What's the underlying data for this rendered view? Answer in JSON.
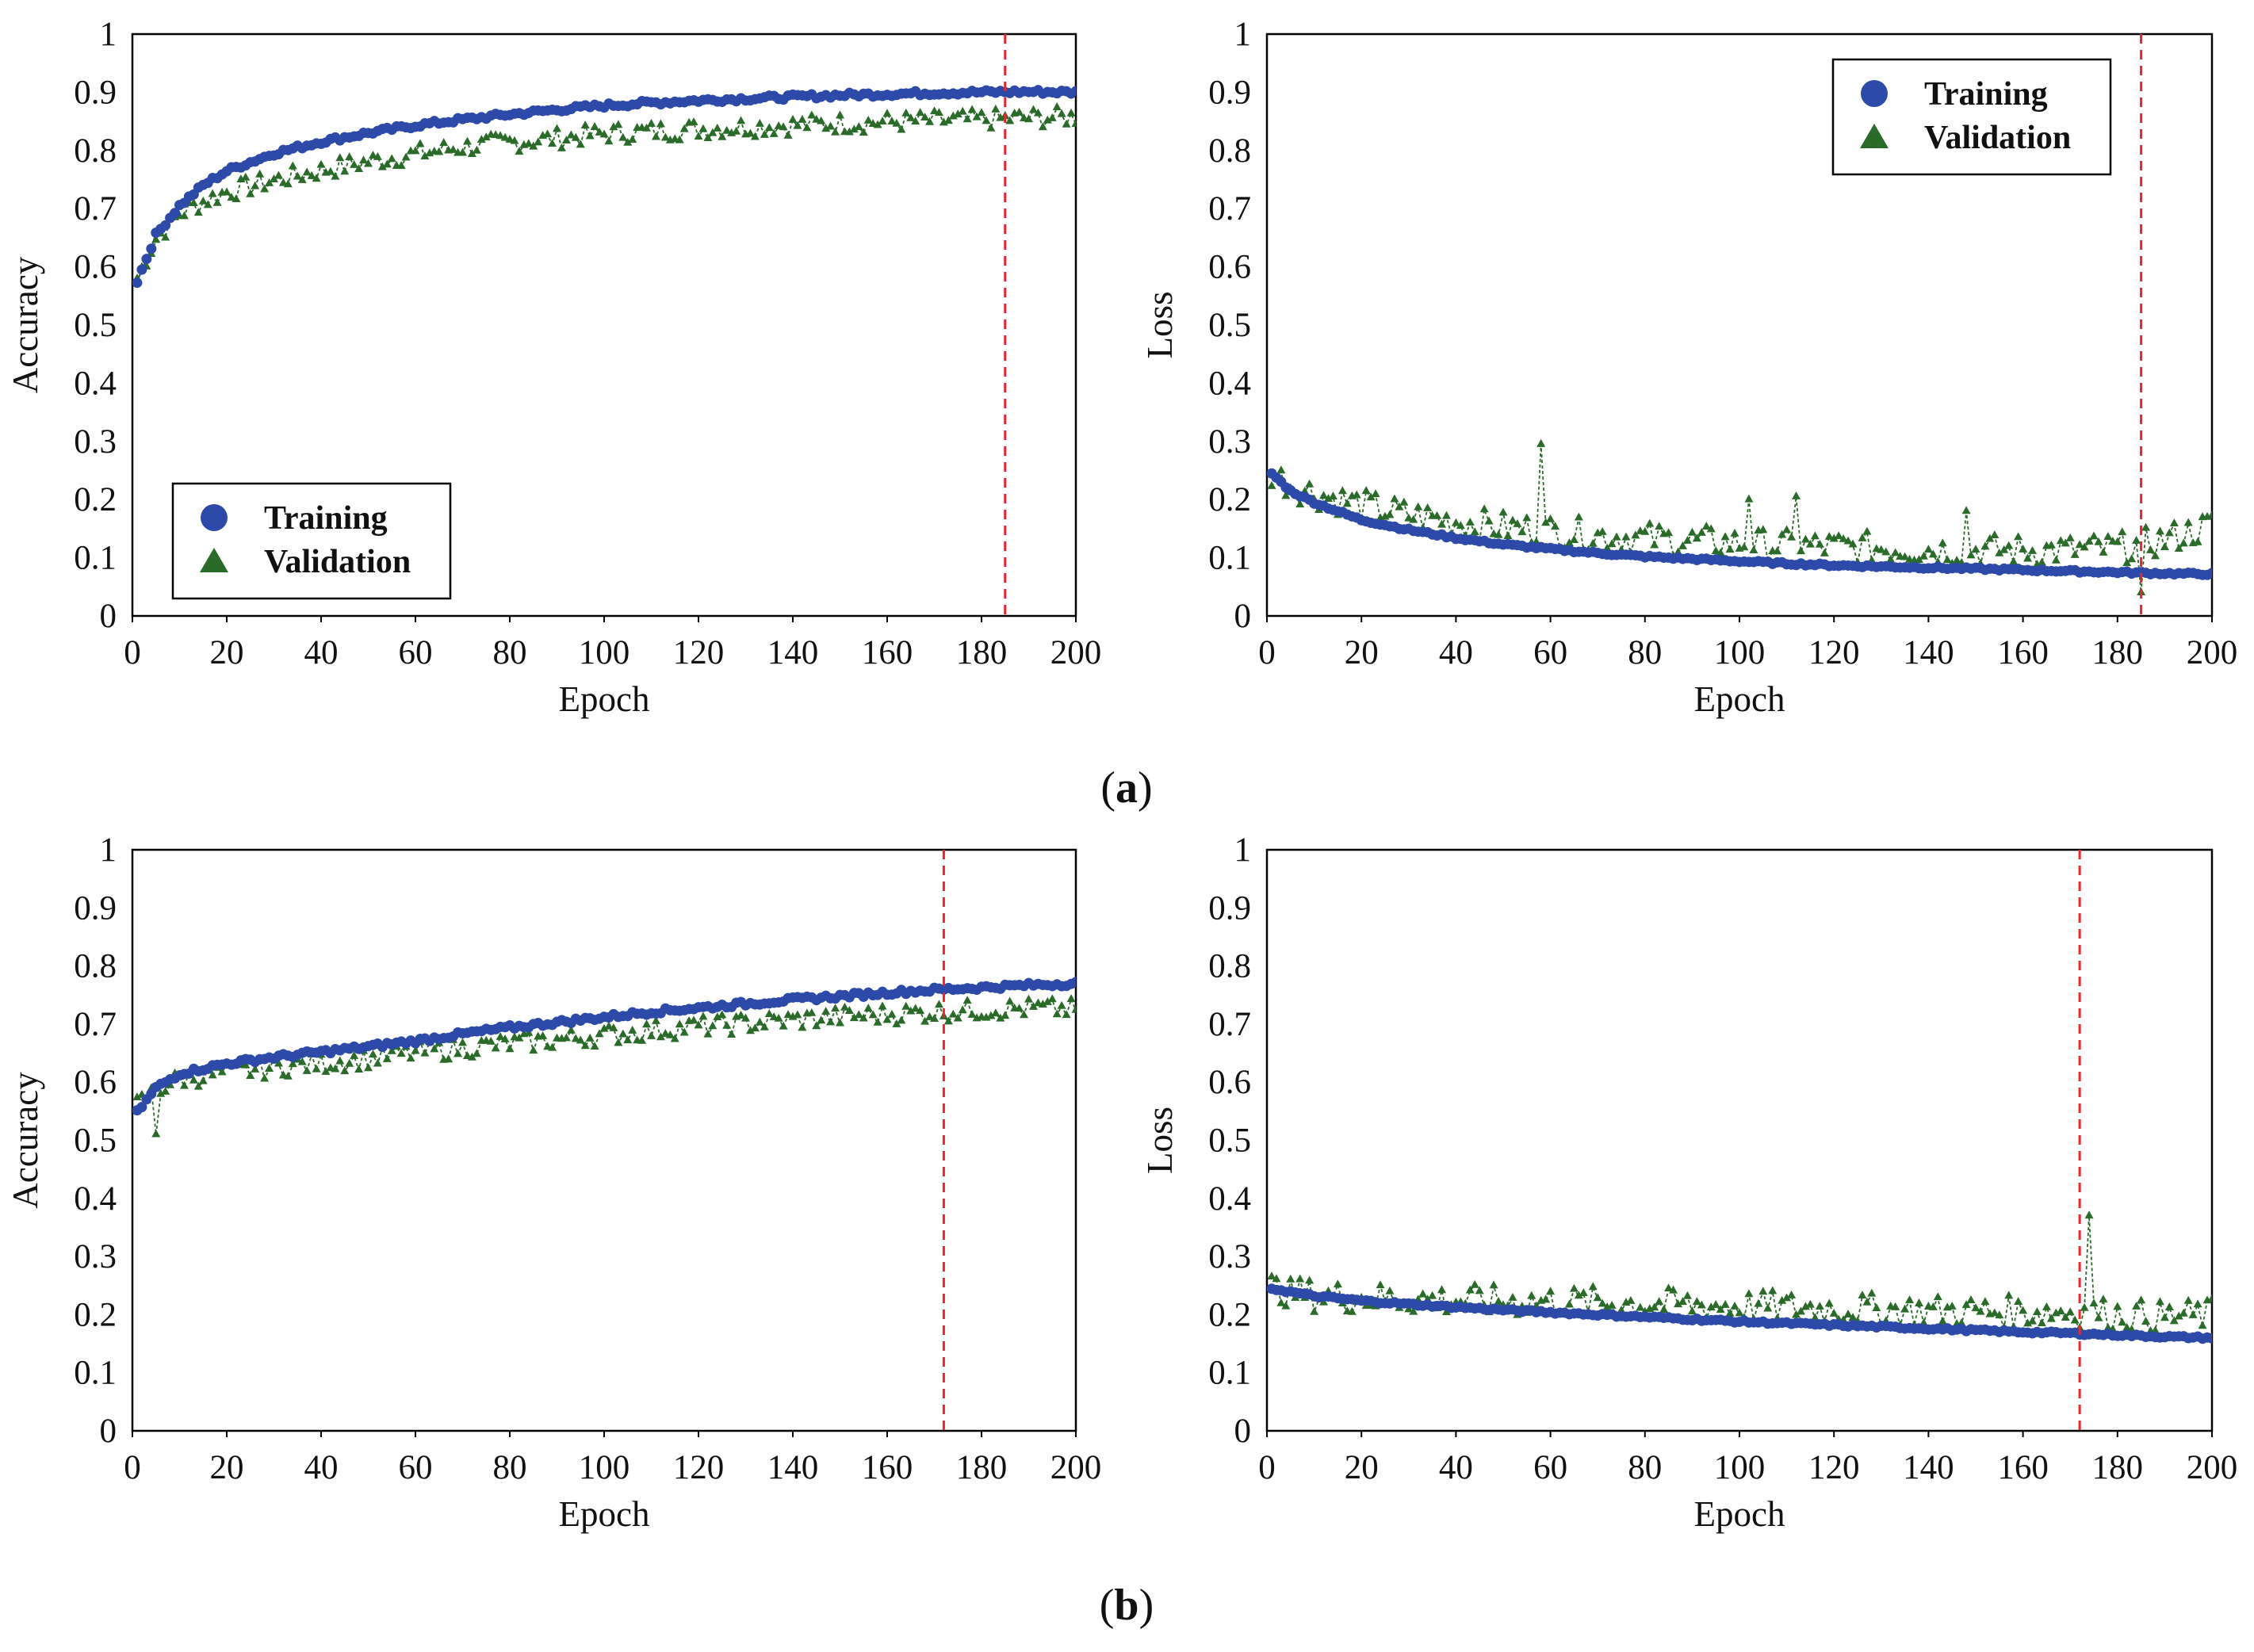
{
  "figure": {
    "panel_labels": [
      {
        "open": "(",
        "letter": "a",
        "close": ")"
      },
      {
        "open": "(",
        "letter": "b",
        "close": ")"
      }
    ]
  },
  "colors": {
    "training": "#2e4aa8",
    "validation": "#2a6b2a",
    "marker_line": "#e8262b",
    "axis": "#000000"
  },
  "chart_data": [
    {
      "id": "a-accuracy",
      "type": "scatter",
      "title": "",
      "xlabel": "Epoch",
      "ylabel": "Accuracy",
      "xlim": [
        0,
        200
      ],
      "ylim": [
        0,
        1
      ],
      "xticks": [
        "0",
        "20",
        "40",
        "60",
        "80",
        "100",
        "120",
        "140",
        "160",
        "180",
        "200"
      ],
      "yticks": [
        "0",
        "0.1",
        "0.2",
        "0.3",
        "0.4",
        "0.5",
        "0.6",
        "0.7",
        "0.8",
        "0.9",
        "1"
      ],
      "vline_epoch": 185,
      "legend": {
        "position": "bottom-left",
        "entries": [
          "Training",
          "Validation"
        ]
      },
      "series": [
        {
          "name": "Training",
          "marker": "circle",
          "x": [
            1,
            5,
            10,
            15,
            20,
            30,
            40,
            50,
            60,
            70,
            80,
            90,
            100,
            110,
            120,
            130,
            140,
            150,
            160,
            170,
            180,
            190,
            200
          ],
          "values": [
            0.575,
            0.655,
            0.705,
            0.74,
            0.765,
            0.795,
            0.815,
            0.83,
            0.843,
            0.853,
            0.862,
            0.87,
            0.877,
            0.882,
            0.886,
            0.889,
            0.892,
            0.895,
            0.897,
            0.899,
            0.9,
            0.901,
            0.9
          ]
        },
        {
          "name": "Validation",
          "marker": "triangle",
          "x": [
            1,
            5,
            10,
            15,
            20,
            30,
            40,
            50,
            60,
            70,
            80,
            90,
            100,
            110,
            120,
            130,
            140,
            150,
            160,
            170,
            180,
            190,
            200
          ],
          "values": [
            0.58,
            0.648,
            0.69,
            0.712,
            0.728,
            0.748,
            0.765,
            0.78,
            0.793,
            0.805,
            0.813,
            0.82,
            0.828,
            0.832,
            0.836,
            0.84,
            0.843,
            0.846,
            0.848,
            0.85,
            0.852,
            0.855,
            0.857
          ]
        }
      ]
    },
    {
      "id": "a-loss",
      "type": "scatter",
      "title": "",
      "xlabel": "Epoch",
      "ylabel": "Loss",
      "xlim": [
        0,
        200
      ],
      "ylim": [
        0,
        1
      ],
      "xticks": [
        "0",
        "20",
        "40",
        "60",
        "80",
        "100",
        "120",
        "140",
        "160",
        "180",
        "200"
      ],
      "yticks": [
        "0",
        "0.1",
        "0.2",
        "0.3",
        "0.4",
        "0.5",
        "0.6",
        "0.7",
        "0.8",
        "0.9",
        "1"
      ],
      "vline_epoch": 185,
      "legend": {
        "position": "top-right",
        "entries": [
          "Training",
          "Validation"
        ]
      },
      "series": [
        {
          "name": "Training",
          "marker": "circle",
          "x": [
            1,
            5,
            10,
            20,
            30,
            40,
            50,
            60,
            70,
            80,
            90,
            100,
            110,
            120,
            130,
            140,
            150,
            160,
            170,
            180,
            190,
            200
          ],
          "values": [
            0.245,
            0.215,
            0.195,
            0.165,
            0.148,
            0.134,
            0.123,
            0.115,
            0.108,
            0.102,
            0.098,
            0.094,
            0.09,
            0.087,
            0.085,
            0.083,
            0.081,
            0.079,
            0.077,
            0.075,
            0.073,
            0.072
          ]
        },
        {
          "name": "Validation",
          "marker": "triangle",
          "x": [
            1,
            5,
            10,
            20,
            30,
            40,
            50,
            60,
            70,
            80,
            90,
            100,
            110,
            120,
            130,
            140,
            150,
            160,
            170,
            180,
            190,
            200
          ],
          "values": [
            0.245,
            0.225,
            0.21,
            0.19,
            0.172,
            0.162,
            0.152,
            0.145,
            0.138,
            0.133,
            0.128,
            0.124,
            0.12,
            0.118,
            0.116,
            0.114,
            0.113,
            0.112,
            0.112,
            0.115,
            0.13,
            0.155
          ]
        }
      ],
      "spikes": [
        {
          "series": "Validation",
          "x": 58,
          "value": 0.295
        },
        {
          "series": "Validation",
          "x": 102,
          "value": 0.2
        },
        {
          "series": "Validation",
          "x": 112,
          "value": 0.205
        },
        {
          "series": "Validation",
          "x": 148,
          "value": 0.18
        },
        {
          "series": "Validation",
          "x": 185,
          "value": 0.04
        }
      ]
    },
    {
      "id": "b-accuracy",
      "type": "scatter",
      "title": "",
      "xlabel": "Epoch",
      "ylabel": "Accuracy",
      "xlim": [
        0,
        200
      ],
      "ylim": [
        0,
        1
      ],
      "xticks": [
        "0",
        "20",
        "40",
        "60",
        "80",
        "100",
        "120",
        "140",
        "160",
        "180",
        "200"
      ],
      "yticks": [
        "0",
        "0.1",
        "0.2",
        "0.3",
        "0.4",
        "0.5",
        "0.6",
        "0.7",
        "0.8",
        "0.9",
        "1"
      ],
      "vline_epoch": 172,
      "legend": null,
      "series": [
        {
          "name": "Training",
          "marker": "circle",
          "x": [
            1,
            5,
            10,
            20,
            30,
            40,
            50,
            60,
            70,
            80,
            90,
            100,
            110,
            120,
            130,
            140,
            150,
            160,
            170,
            180,
            190,
            200
          ],
          "values": [
            0.548,
            0.59,
            0.615,
            0.632,
            0.643,
            0.652,
            0.661,
            0.671,
            0.683,
            0.694,
            0.703,
            0.712,
            0.721,
            0.728,
            0.735,
            0.742,
            0.748,
            0.754,
            0.759,
            0.763,
            0.767,
            0.77
          ]
        },
        {
          "name": "Validation",
          "marker": "triangle",
          "x": [
            1,
            5,
            10,
            20,
            30,
            40,
            50,
            60,
            70,
            80,
            90,
            100,
            110,
            120,
            130,
            140,
            150,
            160,
            170,
            180,
            190,
            200
          ],
          "values": [
            0.56,
            0.585,
            0.605,
            0.615,
            0.625,
            0.632,
            0.64,
            0.65,
            0.658,
            0.665,
            0.672,
            0.68,
            0.688,
            0.695,
            0.7,
            0.706,
            0.712,
            0.716,
            0.72,
            0.724,
            0.726,
            0.725
          ]
        }
      ],
      "spikes": [
        {
          "series": "Validation",
          "x": 5,
          "value": 0.51
        }
      ]
    },
    {
      "id": "b-loss",
      "type": "scatter",
      "title": "",
      "xlabel": "Epoch",
      "ylabel": "Loss",
      "xlim": [
        0,
        200
      ],
      "ylim": [
        0,
        1
      ],
      "xticks": [
        "0",
        "20",
        "40",
        "60",
        "80",
        "100",
        "120",
        "140",
        "160",
        "180",
        "200"
      ],
      "yticks": [
        "0",
        "0.1",
        "0.2",
        "0.3",
        "0.4",
        "0.5",
        "0.6",
        "0.7",
        "0.8",
        "0.9",
        "1"
      ],
      "vline_epoch": 172,
      "legend": null,
      "series": [
        {
          "name": "Training",
          "marker": "circle",
          "x": [
            1,
            10,
            20,
            30,
            40,
            50,
            60,
            70,
            80,
            90,
            100,
            110,
            120,
            130,
            140,
            150,
            160,
            170,
            180,
            190,
            200
          ],
          "values": [
            0.245,
            0.232,
            0.224,
            0.218,
            0.213,
            0.208,
            0.204,
            0.2,
            0.196,
            0.192,
            0.188,
            0.185,
            0.182,
            0.179,
            0.176,
            0.173,
            0.17,
            0.168,
            0.165,
            0.162,
            0.16
          ]
        },
        {
          "name": "Validation",
          "marker": "triangle",
          "x": [
            1,
            10,
            20,
            30,
            40,
            50,
            60,
            70,
            80,
            90,
            100,
            110,
            120,
            130,
            140,
            150,
            160,
            170,
            180,
            190,
            200
          ],
          "values": [
            0.245,
            0.232,
            0.228,
            0.226,
            0.224,
            0.222,
            0.222,
            0.22,
            0.218,
            0.216,
            0.214,
            0.212,
            0.21,
            0.208,
            0.206,
            0.205,
            0.204,
            0.205,
            0.2,
            0.195,
            0.2
          ]
        }
      ],
      "spikes": [
        {
          "series": "Validation",
          "x": 174,
          "value": 0.37
        },
        {
          "series": "Validation",
          "x": 5,
          "value": 0.26
        }
      ]
    }
  ]
}
